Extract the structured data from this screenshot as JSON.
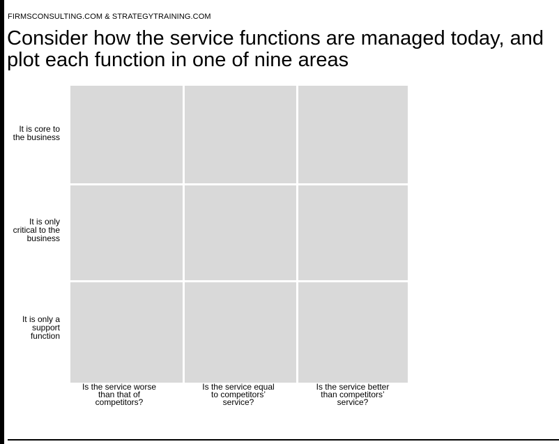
{
  "header": {
    "source": "FIRMSCONSULTING.COM & STRATEGYTRAINING.COM"
  },
  "title": "Consider how the service functions are managed today, and plot each function in one of nine areas",
  "matrix": {
    "rows": [
      {
        "label": "It is core to\nthe business"
      },
      {
        "label": "It is only\ncritical to the\nbusiness"
      },
      {
        "label": "It is only a\nsupport\nfunction"
      }
    ],
    "columns": [
      {
        "label": "Is the service worse\nthan that of\ncompetitors?"
      },
      {
        "label": "Is the service equal\nto competitors’\nservice?"
      },
      {
        "label": "Is the service better\nthan competitors’\nservice?"
      }
    ],
    "cell_color": "#d9d9d9"
  }
}
